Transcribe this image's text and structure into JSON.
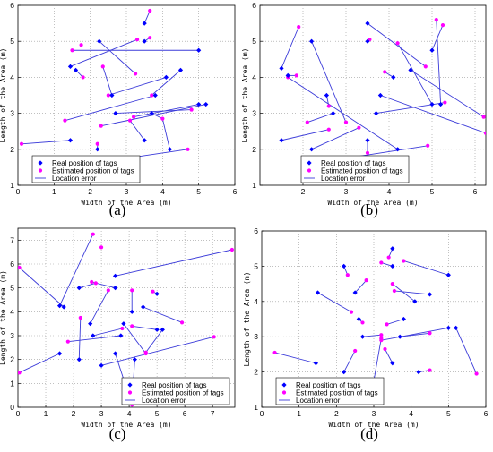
{
  "styles": {
    "real_color": "#0000ff",
    "est_color": "#ff00ff",
    "line_color": "#3b3bd9",
    "grid": "dotted"
  },
  "chart_data": [
    {
      "type": "scatter",
      "title": "(a)",
      "xlabel": "Width of the Area (m)",
      "ylabel": "Length of the Area (m)",
      "xlim": [
        0,
        6
      ],
      "ylim": [
        1,
        6
      ],
      "xticks": [
        "0",
        "1",
        "2",
        "3",
        "4",
        "5",
        "6"
      ],
      "yticks": [
        "1",
        "2",
        "3",
        "4",
        "5",
        "6"
      ],
      "legend": [
        "Real position of tags",
        "Estimated position of tags",
        "Location error"
      ],
      "legend_position": "bottom-left",
      "series": [
        {
          "name": "Real position of tags",
          "role": "real",
          "points": [
            [
              1.45,
              4.3
            ],
            [
              2.25,
              5.0
            ],
            [
              3.5,
              5.5
            ],
            [
              3.5,
              5.0
            ],
            [
              5.0,
              4.75
            ],
            [
              1.6,
              4.2
            ],
            [
              2.6,
              3.5
            ],
            [
              4.1,
              4.0
            ],
            [
              4.5,
              4.2
            ],
            [
              3.8,
              3.5
            ],
            [
              2.7,
              3.0
            ],
            [
              3.7,
              3.0
            ],
            [
              5.0,
              3.25
            ],
            [
              5.2,
              3.25
            ],
            [
              1.45,
              2.25
            ],
            [
              2.2,
              2.0
            ],
            [
              3.5,
              2.25
            ],
            [
              3.0,
              1.75
            ],
            [
              4.2,
              2.0
            ]
          ]
        },
        {
          "name": "Estimated position of tags",
          "role": "est",
          "points": [
            [
              1.75,
              4.9
            ],
            [
              3.3,
              5.05
            ],
            [
              3.65,
              5.85
            ],
            [
              3.65,
              5.1
            ],
            [
              1.5,
              4.75
            ],
            [
              1.8,
              4.0
            ],
            [
              2.35,
              4.3
            ],
            [
              2.5,
              3.5
            ],
            [
              3.25,
              4.1
            ],
            [
              3.7,
              3.5
            ],
            [
              1.3,
              2.8
            ],
            [
              2.3,
              2.65
            ],
            [
              3.2,
              2.9
            ],
            [
              4.8,
              3.1
            ],
            [
              4.0,
              2.85
            ],
            [
              0.1,
              2.15
            ],
            [
              2.2,
              2.15
            ],
            [
              3.1,
              2.8
            ],
            [
              4.7,
              2.0
            ]
          ]
        },
        {
          "name": "Location error",
          "role": "error",
          "pairs": [
            [
              0,
              1
            ],
            [
              1,
              8
            ],
            [
              2,
              2
            ],
            [
              3,
              3
            ],
            [
              4,
              4
            ],
            [
              5,
              5
            ],
            [
              6,
              6
            ],
            [
              7,
              7
            ],
            [
              8,
              9
            ],
            [
              9,
              10
            ],
            [
              10,
              13
            ],
            [
              11,
              14
            ],
            [
              12,
              12
            ],
            [
              13,
              11
            ],
            [
              14,
              15
            ],
            [
              15,
              16
            ],
            [
              16,
              17
            ],
            [
              17,
              18
            ],
            [
              18,
              14
            ]
          ]
        }
      ]
    },
    {
      "type": "scatter",
      "title": "(b)",
      "xlabel": "Width of the Area (m)",
      "ylabel": "Length of the Area (m)",
      "xlim": [
        1,
        6.25
      ],
      "ylim": [
        1,
        6
      ],
      "xticks": [
        "2",
        "3",
        "4",
        "5",
        "6"
      ],
      "yticks": [
        "1",
        "2",
        "3",
        "4",
        "5",
        "6"
      ],
      "legend": [
        "Real position of tags",
        "Estimated position of tags",
        "Location error"
      ],
      "legend_position": "bottom-center",
      "series": [
        {
          "name": "Real position of tags",
          "role": "real",
          "points": [
            [
              1.5,
              4.25
            ],
            [
              2.2,
              5.0
            ],
            [
              3.5,
              5.5
            ],
            [
              3.5,
              5.0
            ],
            [
              5.0,
              4.75
            ],
            [
              1.65,
              4.05
            ],
            [
              2.55,
              3.5
            ],
            [
              4.1,
              4.0
            ],
            [
              4.5,
              4.2
            ],
            [
              3.8,
              3.5
            ],
            [
              2.7,
              3.0
            ],
            [
              3.7,
              3.0
            ],
            [
              5.0,
              3.25
            ],
            [
              5.2,
              3.25
            ],
            [
              1.5,
              2.25
            ],
            [
              2.2,
              2.0
            ],
            [
              3.5,
              2.25
            ],
            [
              3.0,
              1.75
            ],
            [
              4.2,
              2.0
            ]
          ]
        },
        {
          "name": "Estimated position of tags",
          "role": "est",
          "points": [
            [
              1.9,
              5.4
            ],
            [
              3.55,
              5.05
            ],
            [
              5.1,
              5.6
            ],
            [
              4.2,
              4.95
            ],
            [
              1.65,
              4.0
            ],
            [
              1.85,
              4.05
            ],
            [
              2.6,
              3.2
            ],
            [
              3.9,
              4.15
            ],
            [
              4.85,
              4.3
            ],
            [
              5.3,
              3.3
            ],
            [
              2.1,
              2.75
            ],
            [
              3.0,
              2.75
            ],
            [
              5.25,
              5.45
            ],
            [
              6.2,
              2.9
            ],
            [
              6.25,
              2.45
            ],
            [
              3.3,
              2.6
            ],
            [
              2.6,
              2.55
            ],
            [
              3.5,
              1.9
            ],
            [
              4.9,
              2.1
            ]
          ]
        },
        {
          "name": "Location error",
          "role": "error",
          "pairs": [
            [
              0,
              0
            ],
            [
              1,
              11
            ],
            [
              2,
              8
            ],
            [
              3,
              1
            ],
            [
              4,
              12
            ],
            [
              5,
              5
            ],
            [
              6,
              6
            ],
            [
              7,
              7
            ],
            [
              8,
              13
            ],
            [
              9,
              14
            ],
            [
              10,
              10
            ],
            [
              11,
              9
            ],
            [
              12,
              3
            ],
            [
              13,
              2
            ],
            [
              14,
              16
            ],
            [
              15,
              15
            ],
            [
              16,
              17
            ],
            [
              17,
              18
            ],
            [
              18,
              4
            ]
          ]
        }
      ]
    },
    {
      "type": "scatter",
      "title": "(c)",
      "xlabel": "Width of the Area (m)",
      "ylabel": "Length of the Area (m)",
      "xlim": [
        0,
        7.8
      ],
      "ylim": [
        0,
        7.5
      ],
      "xticks": [
        "0",
        "1",
        "2",
        "3",
        "4",
        "5",
        "6",
        "7"
      ],
      "yticks": [
        "0",
        "1",
        "2",
        "3",
        "4",
        "5",
        "6",
        "7"
      ],
      "legend": [
        "Real position of tags",
        "Estimated position of tags",
        "Location error"
      ],
      "legend_position": "bottom-right",
      "series": [
        {
          "name": "Real position of tags",
          "role": "real",
          "points": [
            [
              1.5,
              4.25
            ],
            [
              2.2,
              5.0
            ],
            [
              3.5,
              5.5
            ],
            [
              3.5,
              5.0
            ],
            [
              5.0,
              4.75
            ],
            [
              1.65,
              4.2
            ],
            [
              2.6,
              3.5
            ],
            [
              4.1,
              4.0
            ],
            [
              4.5,
              4.2
            ],
            [
              3.8,
              3.5
            ],
            [
              2.7,
              3.0
            ],
            [
              3.7,
              3.0
            ],
            [
              5.0,
              3.25
            ],
            [
              5.2,
              3.25
            ],
            [
              1.5,
              2.25
            ],
            [
              2.2,
              2.0
            ],
            [
              3.5,
              2.25
            ],
            [
              3.0,
              1.75
            ],
            [
              4.2,
              2.0
            ]
          ]
        },
        {
          "name": "Estimated position of tags",
          "role": "est",
          "points": [
            [
              2.7,
              7.25
            ],
            [
              3.0,
              6.7
            ],
            [
              2.65,
              5.25
            ],
            [
              4.1,
              4.9
            ],
            [
              3.25,
              4.9
            ],
            [
              4.85,
              4.85
            ],
            [
              2.8,
              5.2
            ],
            [
              4.1,
              3.4
            ],
            [
              5.9,
              3.55
            ],
            [
              4.6,
              2.25
            ],
            [
              1.8,
              2.75
            ],
            [
              3.75,
              3.3
            ],
            [
              4.6,
              2.3
            ],
            [
              7.7,
              6.6
            ],
            [
              7.05,
              2.95
            ],
            [
              2.25,
              3.75
            ],
            [
              4.1,
              0.1
            ],
            [
              0.05,
              1.45
            ],
            [
              0.05,
              5.85
            ]
          ]
        },
        {
          "name": "Location error",
          "role": "error",
          "pairs": [
            [
              0,
              0
            ],
            [
              1,
              6
            ],
            [
              2,
              13
            ],
            [
              3,
              2
            ],
            [
              4,
              5
            ],
            [
              5,
              18
            ],
            [
              6,
              4
            ],
            [
              7,
              3
            ],
            [
              8,
              8
            ],
            [
              9,
              9
            ],
            [
              10,
              11
            ],
            [
              11,
              10
            ],
            [
              12,
              7
            ],
            [
              13,
              12
            ],
            [
              14,
              17
            ],
            [
              15,
              15
            ],
            [
              16,
              16
            ],
            [
              17,
              14
            ],
            [
              18,
              16
            ]
          ]
        }
      ]
    },
    {
      "type": "scatter",
      "title": "(d)",
      "xlabel": "Width of the Area (m)",
      "ylabel": "Length of the Area (m)",
      "xlim": [
        0,
        6
      ],
      "ylim": [
        1,
        6
      ],
      "xticks": [
        "0",
        "1",
        "2",
        "3",
        "4",
        "5",
        "6"
      ],
      "yticks": [
        "1",
        "2",
        "3",
        "4",
        "5",
        "6"
      ],
      "legend": [
        "Real position of tags",
        "Estimated position of tags",
        "Location error"
      ],
      "legend_position": "bottom-left",
      "series": [
        {
          "name": "Real position of tags",
          "role": "real",
          "points": [
            [
              1.5,
              4.25
            ],
            [
              2.2,
              5.0
            ],
            [
              3.5,
              5.5
            ],
            [
              3.5,
              5.0
            ],
            [
              5.0,
              4.75
            ],
            [
              2.5,
              4.25
            ],
            [
              2.6,
              3.5
            ],
            [
              4.1,
              4.0
            ],
            [
              4.5,
              4.2
            ],
            [
              3.8,
              3.5
            ],
            [
              2.7,
              3.0
            ],
            [
              3.7,
              3.0
            ],
            [
              5.0,
              3.25
            ],
            [
              5.2,
              3.25
            ],
            [
              1.45,
              2.25
            ],
            [
              2.2,
              2.0
            ],
            [
              3.5,
              2.25
            ],
            [
              3.0,
              1.75
            ],
            [
              4.2,
              2.0
            ]
          ]
        },
        {
          "name": "Estimated position of tags",
          "role": "est",
          "points": [
            [
              2.4,
              3.7
            ],
            [
              2.3,
              4.75
            ],
            [
              3.4,
              5.25
            ],
            [
              3.2,
              5.1
            ],
            [
              3.8,
              5.15
            ],
            [
              2.8,
              4.6
            ],
            [
              2.7,
              3.4
            ],
            [
              3.5,
              4.5
            ],
            [
              3.55,
              4.3
            ],
            [
              3.35,
              3.35
            ],
            [
              3.2,
              3.05
            ],
            [
              4.5,
              3.1
            ],
            [
              3.2,
              2.9
            ],
            [
              5.75,
              1.95
            ],
            [
              0.35,
              2.55
            ],
            [
              2.5,
              2.6
            ],
            [
              3.3,
              2.65
            ],
            [
              3.2,
              2.95
            ],
            [
              4.5,
              2.05
            ]
          ]
        },
        {
          "name": "Location error",
          "role": "error",
          "pairs": [
            [
              0,
              0
            ],
            [
              1,
              1
            ],
            [
              2,
              2
            ],
            [
              3,
              3
            ],
            [
              4,
              4
            ],
            [
              5,
              5
            ],
            [
              6,
              6
            ],
            [
              7,
              7
            ],
            [
              8,
              8
            ],
            [
              9,
              9
            ],
            [
              10,
              10
            ],
            [
              11,
              11
            ],
            [
              12,
              12
            ],
            [
              13,
              13
            ],
            [
              14,
              14
            ],
            [
              15,
              15
            ],
            [
              16,
              16
            ],
            [
              17,
              17
            ],
            [
              18,
              18
            ]
          ]
        }
      ]
    }
  ]
}
